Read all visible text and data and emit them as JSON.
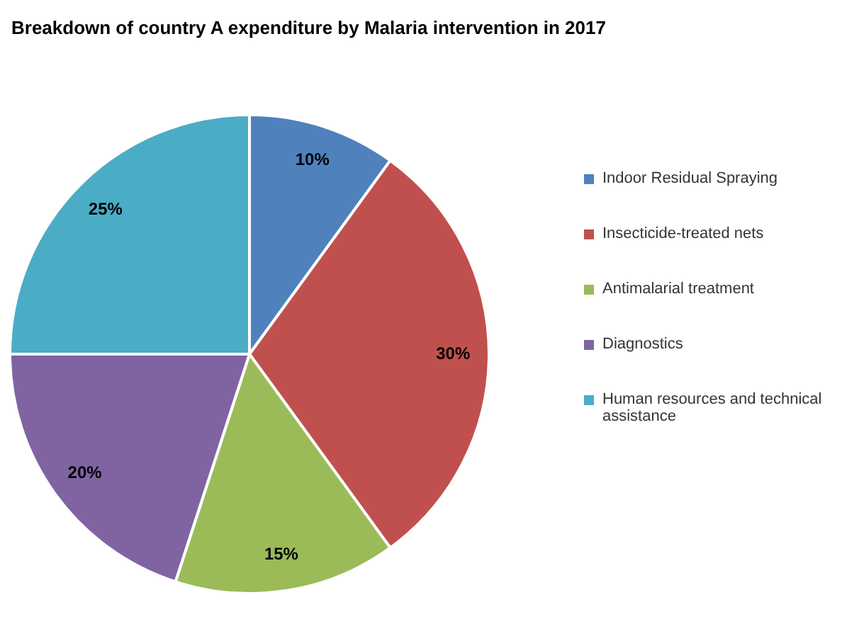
{
  "chart_data": {
    "type": "pie",
    "title": "Breakdown of country A expenditure by Malaria intervention in 2017",
    "categories": [
      "Indoor Residual Spraying",
      "Insecticide-treated nets",
      "Antimalarial treatment",
      "Diagnostics",
      "Human resources and technical assistance"
    ],
    "values": [
      10,
      30,
      15,
      20,
      25
    ],
    "colors": [
      "#4f81bd",
      "#c0504d",
      "#9bbb59",
      "#8064a2",
      "#4bacc6"
    ],
    "value_labels": [
      "10%",
      "30%",
      "15%",
      "20%",
      "25%"
    ],
    "legend": "right"
  }
}
